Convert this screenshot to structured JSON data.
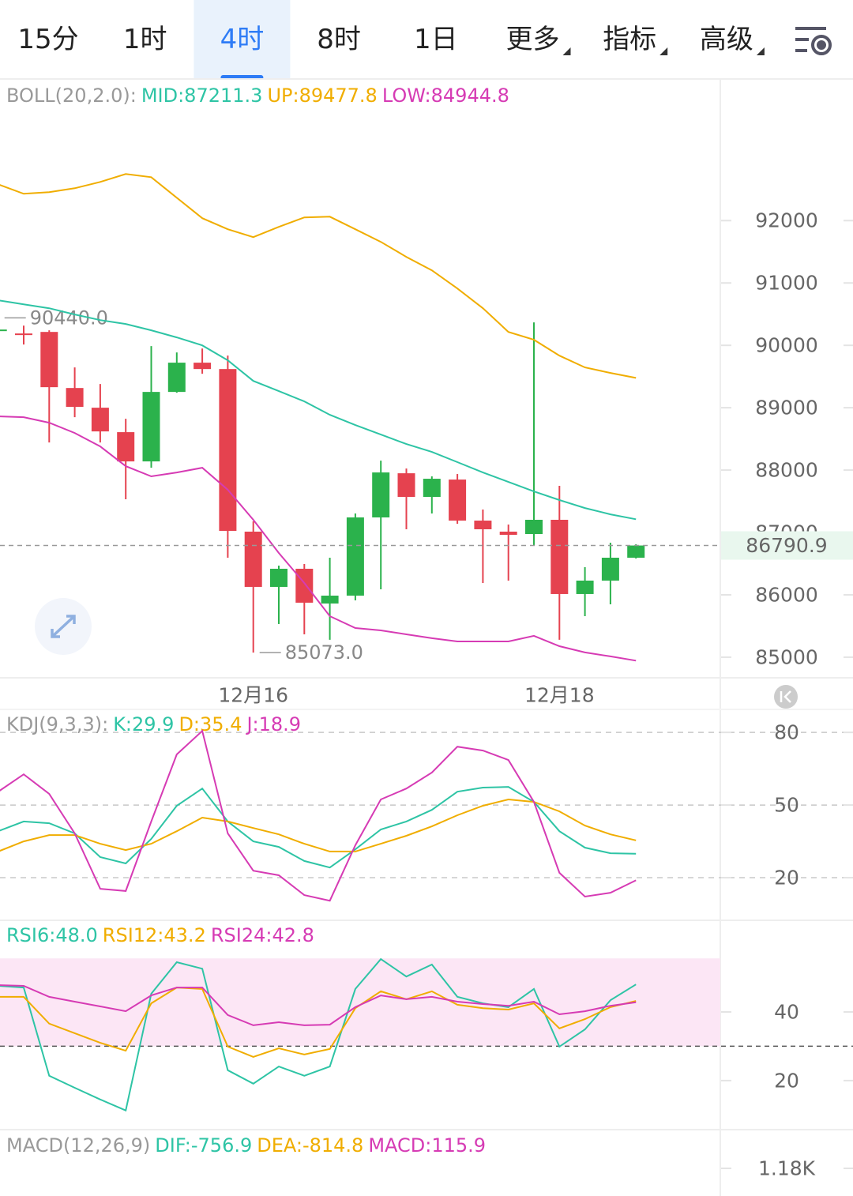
{
  "tabs": [
    {
      "label": "15分"
    },
    {
      "label": "1时"
    },
    {
      "label": "4时"
    },
    {
      "label": "8时"
    },
    {
      "label": "1日"
    },
    {
      "label": "更多",
      "menu": true
    },
    {
      "label": "指标",
      "menu": true
    },
    {
      "label": "高级",
      "menu": true
    }
  ],
  "active_tab": 2,
  "chart_data": [
    {
      "type": "candlestick",
      "title": "BOLL(20,2.0):",
      "categories": [
        null,
        null,
        null,
        null,
        null,
        null,
        null,
        null,
        null,
        null,
        "12月16",
        null,
        null,
        null,
        null,
        null,
        null,
        null,
        null,
        null,
        null,
        null,
        "12月18",
        null,
        null,
        null
      ],
      "open": [
        90228,
        90190,
        90215,
        89316,
        89000,
        88608,
        88139,
        89253,
        89722,
        89620,
        87013,
        86127,
        86418,
        85861,
        85987,
        87241,
        87949,
        87570,
        87848,
        87190,
        87013,
        86975,
        87203,
        86013,
        86228,
        86595
      ],
      "high": [
        90440,
        90316,
        90241,
        89646,
        89380,
        88823,
        89987,
        89886,
        89949,
        89835,
        87177,
        86468,
        86494,
        86595,
        87304,
        88152,
        88025,
        87899,
        87937,
        87367,
        87127,
        90367,
        87747,
        86443,
        86835,
        86810
      ],
      "low": [
        90152,
        90013,
        88443,
        88848,
        88443,
        87532,
        88038,
        89240,
        89544,
        86595,
        85073,
        85532,
        85367,
        85279,
        85911,
        86089,
        87051,
        87304,
        87139,
        86190,
        86228,
        86797,
        85279,
        85658,
        85848,
        86582
      ],
      "close": [
        90253,
        90190,
        89329,
        89013,
        88620,
        88139,
        89253,
        89722,
        89620,
        87025,
        86127,
        86418,
        85874,
        85987,
        87241,
        87962,
        87570,
        87861,
        87190,
        87051,
        86962,
        87203,
        86013,
        86228,
        86595,
        86790.9
      ],
      "up_color": "#2bb24c",
      "down_color": "#e5424f",
      "series": [
        {
          "name": "MID:87211.3",
          "color": "#2ec4a5",
          "values": [
            90722,
            90658,
            90595,
            90494,
            90405,
            90342,
            90241,
            90127,
            90000,
            89760,
            89430,
            89266,
            89101,
            88886,
            88722,
            88570,
            88418,
            88291,
            88127,
            87962,
            87810,
            87658,
            87519,
            87392,
            87291,
            87211.3
          ]
        },
        {
          "name": "UP:89477.8",
          "color": "#f0ad00",
          "values": [
            92582,
            92430,
            92456,
            92519,
            92620,
            92747,
            92696,
            92367,
            92038,
            91861,
            91734,
            91899,
            92051,
            92063,
            91861,
            91658,
            91418,
            91203,
            90911,
            90595,
            90215,
            90089,
            89835,
            89646,
            89557,
            89477.8
          ]
        },
        {
          "name": "LOW:84944.8",
          "color": "#d63bb4",
          "values": [
            88861,
            88848,
            88759,
            88595,
            88380,
            88063,
            87899,
            87962,
            88038,
            87684,
            87203,
            86671,
            86190,
            85658,
            85468,
            85430,
            85367,
            85304,
            85253,
            85253,
            85253,
            85342,
            85177,
            85076,
            85013,
            84944.8
          ]
        }
      ],
      "annotations": [
        {
          "label": "90440.0",
          "value": 90440
        },
        {
          "label": "85073.0",
          "value": 85073
        }
      ],
      "last_price": {
        "value": 86790.9,
        "label": "86790.9"
      },
      "ylim": [
        84670,
        94270
      ],
      "yticks": [
        85000,
        86000,
        87000,
        88000,
        89000,
        90000,
        91000,
        92000
      ]
    },
    {
      "type": "line",
      "title": "KDJ(9,3,3):",
      "series": [
        {
          "name": "K:29.9",
          "color": "#2ec4a5",
          "values": [
            39.2,
            43.2,
            42.5,
            38.3,
            28.5,
            25.9,
            36.0,
            49.7,
            56.8,
            43.2,
            35.0,
            32.7,
            26.9,
            24.2,
            31.7,
            39.9,
            43.2,
            48.0,
            55.5,
            57.2,
            57.5,
            51.3,
            39.2,
            32.4,
            30.1,
            29.9
          ]
        },
        {
          "name": "D:35.4",
          "color": "#f0ad00",
          "values": [
            30.8,
            35.0,
            37.6,
            37.6,
            34.0,
            31.4,
            34.0,
            39.2,
            44.8,
            43.2,
            40.5,
            37.9,
            34.0,
            30.8,
            30.8,
            34.0,
            37.3,
            41.2,
            45.8,
            49.7,
            52.3,
            51.3,
            47.4,
            41.5,
            37.9,
            35.4
          ]
        },
        {
          "name": "J:18.9",
          "color": "#d63bb4",
          "values": [
            55.5,
            62.7,
            54.6,
            38.3,
            15.4,
            14.5,
            43.2,
            70.9,
            80.6,
            38.3,
            22.9,
            21.0,
            12.8,
            10.5,
            33.4,
            52.3,
            56.8,
            63.4,
            74.1,
            72.5,
            68.6,
            51.3,
            22.0,
            12.2,
            13.8,
            18.9
          ]
        }
      ],
      "ylim": [
        2.4,
        89.5
      ],
      "yticks": [
        20,
        50,
        80
      ],
      "grid": true
    },
    {
      "type": "line",
      "series": [
        {
          "name": "RSI6:48.0",
          "color": "#2ec4a5",
          "values": [
            47.6,
            47.1,
            21.4,
            17.9,
            14.5,
            11.3,
            45.3,
            54.5,
            52.6,
            23.0,
            19.1,
            24.1,
            21.4,
            24.1,
            46.7,
            55.4,
            50.3,
            53.8,
            44.4,
            42.5,
            41.4,
            46.7,
            29.9,
            34.9,
            43.4,
            48.0
          ]
        },
        {
          "name": "RSI12:43.2",
          "color": "#f0ad00",
          "values": [
            44.4,
            44.4,
            36.6,
            33.8,
            31.0,
            28.7,
            42.5,
            47.1,
            46.7,
            29.9,
            26.9,
            29.4,
            27.6,
            29.2,
            41.1,
            46.0,
            43.7,
            46.0,
            42.1,
            41.1,
            40.7,
            42.5,
            35.2,
            37.9,
            41.4,
            43.2
          ]
        },
        {
          "name": "RSI24:42.8",
          "color": "#d63bb4",
          "values": [
            47.8,
            47.6,
            44.4,
            43.0,
            41.6,
            40.2,
            44.8,
            47.1,
            47.1,
            39.1,
            36.1,
            37.0,
            36.1,
            36.3,
            41.4,
            44.8,
            43.7,
            44.4,
            43.0,
            42.3,
            41.8,
            43.0,
            39.3,
            40.2,
            41.8,
            42.8
          ]
        }
      ],
      "band": [
        30,
        55.6
      ],
      "band_color": "#fce6f5",
      "reference_line": 30,
      "ylim": [
        5.7,
        66.7
      ],
      "yticks": [
        20,
        40
      ]
    },
    {
      "type": "macd",
      "title": "MACD(12,26,9)",
      "legend": [
        {
          "text": "DIF:-756.9",
          "color": "#2ec4a5"
        },
        {
          "text": "DEA:-814.8",
          "color": "#f0ad00"
        },
        {
          "text": "MACD:115.9",
          "color": "#d63bb4"
        }
      ],
      "ylim": [
        1000,
        1432
      ],
      "yticks": [
        {
          "value": 1180,
          "label": "1.18K"
        }
      ]
    }
  ]
}
